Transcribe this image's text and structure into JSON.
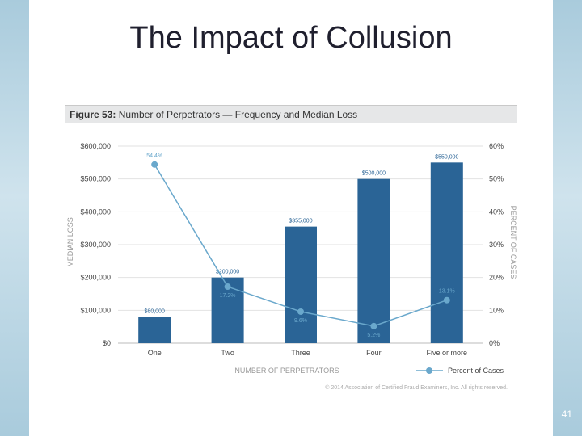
{
  "slide": {
    "title": "The Impact of Collusion",
    "page_number": "41"
  },
  "figure": {
    "label": "Figure 53:",
    "caption": "Number of Perpetrators — Frequency and Median Loss",
    "copyright": "© 2014 Association of Certified Fraud Examiners, Inc. All rights reserved."
  },
  "chart_data": {
    "type": "bar",
    "categories": [
      "One",
      "Two",
      "Three",
      "Four",
      "Five or more"
    ],
    "series": [
      {
        "name": "",
        "type": "bar",
        "axis": "left",
        "values": [
          80000,
          200000,
          355000,
          500000,
          550000
        ],
        "labels": [
          "$80,000",
          "$200,000",
          "$355,000",
          "$500,000",
          "$550,000"
        ],
        "color": "#2a6496"
      },
      {
        "name": "Percent of Cases",
        "type": "line",
        "axis": "right",
        "values": [
          54.4,
          17.2,
          9.6,
          5.2,
          13.1
        ],
        "labels": [
          "54.4%",
          "17.2%",
          "9.6%",
          "5.2%",
          "13.1%"
        ],
        "color": "#6aa8cc"
      }
    ],
    "xlabel": "NUMBER OF PERPETRATORS",
    "ylabel": "MEDIAN LOSS",
    "y2label": "PERCENT OF CASES",
    "ylim": [
      0,
      600000
    ],
    "y2lim": [
      0,
      60
    ],
    "yticks": [
      "$0",
      "$100,000",
      "$200,000",
      "$300,000",
      "$400,000",
      "$500,000",
      "$600,000"
    ],
    "y2ticks": [
      "0%",
      "10%",
      "20%",
      "30%",
      "40%",
      "50%",
      "60%"
    ],
    "grid": true,
    "legend_position": "bottom-right"
  }
}
